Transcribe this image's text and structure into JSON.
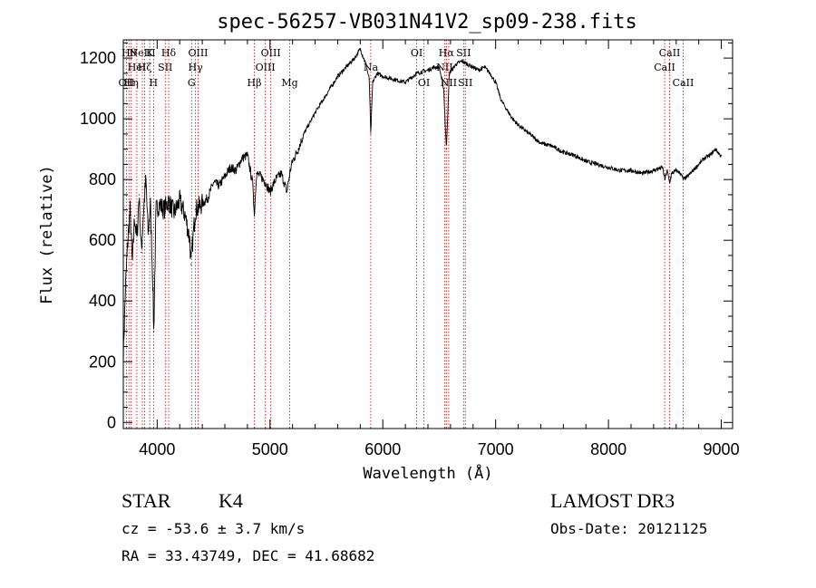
{
  "chart_data": {
    "type": "line",
    "title": "spec-56257-VB031N41V2_sp09-238.fits",
    "xlabel": "Wavelength (Å)",
    "ylabel": "Flux (relative)",
    "xlim": [
      3700,
      9100
    ],
    "ylim": [
      -20,
      1260
    ],
    "xticks": [
      4000,
      5000,
      6000,
      7000,
      8000,
      9000
    ],
    "yticks": [
      0,
      200,
      400,
      600,
      800,
      1000,
      1200
    ],
    "grid": false,
    "series": [
      {
        "name": "flux",
        "x": [
          3700,
          3720,
          3740,
          3760,
          3780,
          3800,
          3820,
          3840,
          3860,
          3880,
          3900,
          3920,
          3940,
          3960,
          3970,
          3990,
          4020,
          4060,
          4100,
          4150,
          4200,
          4250,
          4290,
          4300,
          4320,
          4340,
          4400,
          4450,
          4500,
          4550,
          4600,
          4650,
          4700,
          4750,
          4800,
          4850,
          4861,
          4880,
          4920,
          4960,
          5000,
          5050,
          5100,
          5150,
          5180,
          5200,
          5250,
          5300,
          5400,
          5500,
          5600,
          5700,
          5750,
          5800,
          5820,
          5850,
          5880,
          5893,
          5910,
          5950,
          6000,
          6100,
          6200,
          6300,
          6400,
          6450,
          6500,
          6540,
          6563,
          6590,
          6650,
          6700,
          6750,
          6800,
          6850,
          6900,
          6950,
          7000,
          7050,
          7100,
          7150,
          7200,
          7300,
          7400,
          7500,
          7600,
          7700,
          7800,
          7900,
          8000,
          8100,
          8200,
          8300,
          8400,
          8480,
          8500,
          8520,
          8542,
          8560,
          8600,
          8640,
          8662,
          8700,
          8750,
          8800,
          8850,
          8900,
          8950,
          8990,
          9000
        ],
        "y": [
          220,
          450,
          600,
          700,
          520,
          680,
          600,
          750,
          560,
          700,
          800,
          620,
          720,
          480,
          300,
          700,
          720,
          700,
          730,
          690,
          730,
          680,
          600,
          520,
          620,
          700,
          720,
          740,
          790,
          780,
          810,
          840,
          830,
          870,
          880,
          780,
          680,
          820,
          810,
          790,
          760,
          800,
          820,
          760,
          830,
          860,
          900,
          950,
          1020,
          1080,
          1140,
          1180,
          1200,
          1230,
          1210,
          1180,
          1130,
          950,
          1120,
          1150,
          1140,
          1130,
          1120,
          1150,
          1160,
          1170,
          1170,
          1100,
          900,
          1150,
          1180,
          1190,
          1180,
          1170,
          1160,
          1170,
          1150,
          1120,
          1060,
          1030,
          1000,
          980,
          950,
          920,
          910,
          890,
          880,
          860,
          850,
          840,
          830,
          830,
          820,
          830,
          840,
          800,
          830,
          790,
          820,
          830,
          820,
          800,
          810,
          830,
          850,
          870,
          880,
          900,
          880,
          880
        ]
      }
    ],
    "lines": [
      {
        "wave": 3727,
        "label": "OII",
        "row": 2
      },
      {
        "wave": 3750,
        "label": "Hθ",
        "row": 0
      },
      {
        "wave": 3770,
        "label": "Hη",
        "row": 2
      },
      {
        "wave": 3820,
        "label": "HeI",
        "row": 1
      },
      {
        "wave": 3869,
        "label": "NeIII",
        "row": 0
      },
      {
        "wave": 3889,
        "label": "Hζ",
        "row": 1
      },
      {
        "wave": 3934,
        "label": "K",
        "row": 0
      },
      {
        "wave": 3968,
        "label": "H",
        "row": 2
      },
      {
        "wave": 4072,
        "label": "SII",
        "row": 1
      },
      {
        "wave": 4102,
        "label": "Hδ",
        "row": 0
      },
      {
        "wave": 4305,
        "label": "G",
        "row": 2
      },
      {
        "wave": 4340,
        "label": "Hγ",
        "row": 1
      },
      {
        "wave": 4363,
        "label": "OIII",
        "row": 0
      },
      {
        "wave": 4861,
        "label": "Hβ",
        "row": 2
      },
      {
        "wave": 4959,
        "label": "OIII",
        "row": 1
      },
      {
        "wave": 5007,
        "label": "OIII",
        "row": 0
      },
      {
        "wave": 5175,
        "label": "Mg",
        "row": 2
      },
      {
        "wave": 5893,
        "label": "Na",
        "row": 1
      },
      {
        "wave": 6300,
        "label": "OI",
        "row": 0
      },
      {
        "wave": 6364,
        "label": "OI",
        "row": 2
      },
      {
        "wave": 6548,
        "label": "NII",
        "row": 1
      },
      {
        "wave": 6563,
        "label": "Hα",
        "row": 0
      },
      {
        "wave": 6584,
        "label": "NII",
        "row": 2
      },
      {
        "wave": 6716,
        "label": "SII",
        "row": 0
      },
      {
        "wave": 6731,
        "label": "SII",
        "row": 2
      },
      {
        "wave": 8498,
        "label": "CaII",
        "row": 1
      },
      {
        "wave": 8542,
        "label": "CaII",
        "row": 0
      },
      {
        "wave": 8662,
        "label": "CaII",
        "row": 2
      }
    ]
  },
  "info": {
    "object_type": "STAR",
    "subclass": "K4",
    "survey": "LAMOST DR3",
    "redshift": "cz = -53.6 ± 3.7 km/s",
    "obs_date": "Obs-Date: 20121125",
    "coords": "RA =  33.43749, DEC =  41.68682"
  }
}
